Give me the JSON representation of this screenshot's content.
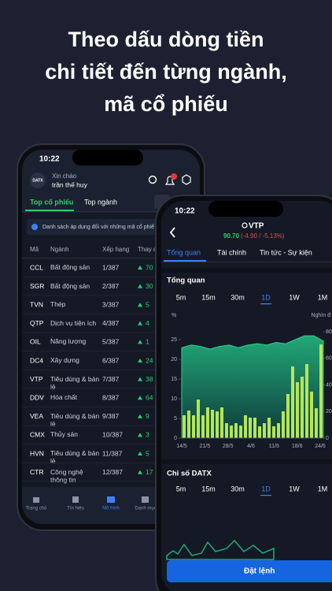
{
  "headline": [
    "Theo dấu dòng tiền",
    "chi tiết đến từng ngành,",
    "mã cổ phiếu"
  ],
  "phone_left": {
    "time": "10:22",
    "avatar": "DATX",
    "greeting": "Xin chào",
    "user": "trần thế huy",
    "tabs": [
      "Top cổ phiếu",
      "Top ngành"
    ],
    "notice": "Danh sách áp dụng đối với những mã cổ phiế",
    "columns": [
      "Mã",
      "Ngành",
      "Xếp hạng",
      "Thay đ"
    ],
    "rows": [
      {
        "code": "CCL",
        "sector": "Bất động sản",
        "rank": "1/387",
        "change": "70"
      },
      {
        "code": "SGR",
        "sector": "Bất động sản",
        "rank": "2/387",
        "change": "30"
      },
      {
        "code": "TVN",
        "sector": "Thép",
        "rank": "3/387",
        "change": "5"
      },
      {
        "code": "QTP",
        "sector": "Dịch vụ tiện ích",
        "rank": "4/387",
        "change": "4"
      },
      {
        "code": "OIL",
        "sector": "Năng lượng",
        "rank": "5/387",
        "change": "1"
      },
      {
        "code": "DC4",
        "sector": "Xây dựng",
        "rank": "6/387",
        "change": "24"
      },
      {
        "code": "VTP",
        "sector": "Tiêu dùng & bán lẻ",
        "rank": "7/387",
        "change": "38"
      },
      {
        "code": "DDV",
        "sector": "Hóa chất",
        "rank": "8/387",
        "change": "64"
      },
      {
        "code": "VEA",
        "sector": "Tiêu dùng & bán lẻ",
        "rank": "9/387",
        "change": "9"
      },
      {
        "code": "CMX",
        "sector": "Thủy sản",
        "rank": "10/387",
        "change": "3"
      },
      {
        "code": "HVN",
        "sector": "Tiêu dùng & bán lẻ",
        "rank": "11/387",
        "change": "5"
      },
      {
        "code": "CTR",
        "sector": "Công nghệ thông tin",
        "rank": "12/387",
        "change": "17"
      }
    ],
    "nav": [
      "Trang chủ",
      "Tín hiệu",
      "Mô hình",
      "Danh mục"
    ]
  },
  "phone_right": {
    "time": "10:22",
    "symbol": "VTP",
    "price": "90.70",
    "change": "(-4.90 / -5.13%)",
    "tabs": [
      "Tổng quan",
      "Tài chính",
      "Tin tức - Sự kiện"
    ],
    "section": "Tổng quan",
    "timeframes": [
      "5m",
      "15m",
      "30m",
      "1D",
      "1W",
      "1M"
    ],
    "chart": {
      "y_label": "%",
      "y2_label": "Nghìn đ",
      "ylim": [
        0,
        27
      ],
      "yticks": [
        0,
        5,
        10,
        15,
        20,
        25
      ],
      "y2lim": [
        0,
        80
      ],
      "y2ticks": [
        0,
        20,
        40,
        60,
        80
      ],
      "x_labels": [
        "14/5",
        "21/5",
        "28/5",
        "4/6",
        "11/6",
        "18/6",
        "24/6"
      ],
      "bars": [
        5.8,
        7,
        5.8,
        9.8,
        5.8,
        7.8,
        7.2,
        6.8,
        7.8,
        3.8,
        3.2,
        3.8,
        3.2,
        5.8,
        5.2,
        5.2,
        3,
        3.8,
        5.2,
        3,
        3.8,
        6.8,
        11.2,
        18.2,
        14.2,
        15.6,
        18.8,
        11.8,
        7.6,
        23.8
      ],
      "price": [
        68,
        70,
        69,
        67,
        69,
        70,
        68,
        70,
        71,
        70,
        72,
        71,
        74,
        77,
        77,
        73
      ]
    },
    "section2": "Chỉ số DATX",
    "timeframes2": [
      "5m",
      "15m",
      "30m",
      "1D",
      "1W",
      "1M"
    ],
    "button": "Đặt lệnh"
  }
}
